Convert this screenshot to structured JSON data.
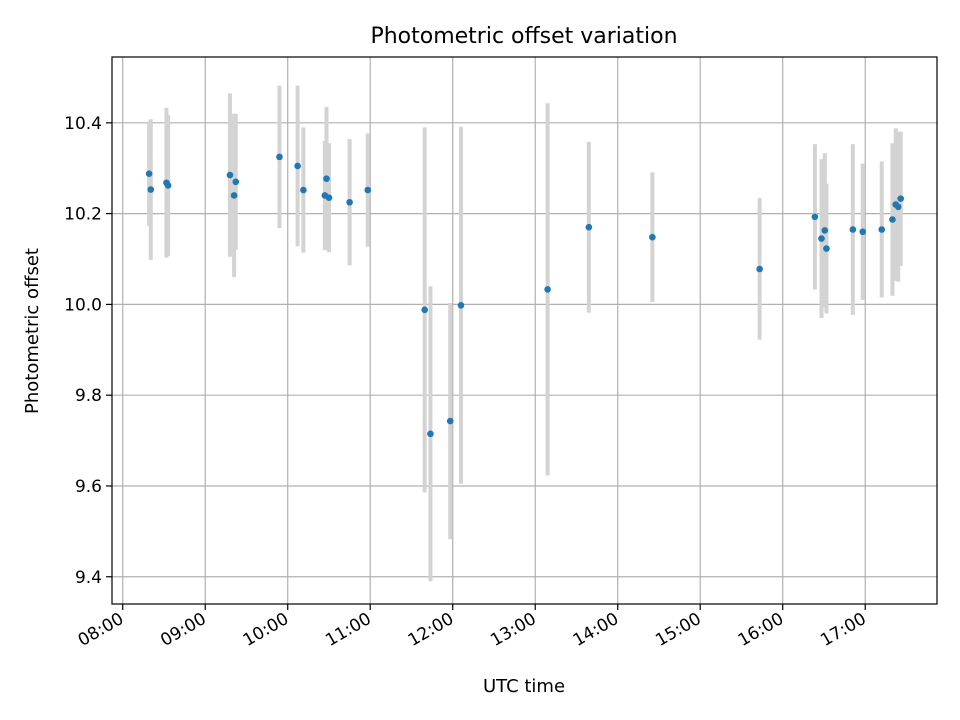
{
  "colors": {
    "point": "#1f77b4",
    "errorbar": "#d3d3d3",
    "grid": "#b0b0b0",
    "axis": "#000000"
  },
  "chart_data": {
    "type": "scatter",
    "title": "Photometric offset variation",
    "xlabel": "UTC time",
    "ylabel": "Photometric offset",
    "x_unit": "hours UTC",
    "xlim": [
      7.87,
      17.87
    ],
    "ylim": [
      9.34,
      10.545
    ],
    "grid": true,
    "xticks": [
      {
        "value": 8,
        "label": "08:00"
      },
      {
        "value": 9,
        "label": "09:00"
      },
      {
        "value": 10,
        "label": "10:00"
      },
      {
        "value": 11,
        "label": "11:00"
      },
      {
        "value": 12,
        "label": "12:00"
      },
      {
        "value": 13,
        "label": "13:00"
      },
      {
        "value": 14,
        "label": "14:00"
      },
      {
        "value": 15,
        "label": "15:00"
      },
      {
        "value": 16,
        "label": "16:00"
      },
      {
        "value": 17,
        "label": "17:00"
      }
    ],
    "yticks": [
      {
        "value": 9.4,
        "label": "9.4"
      },
      {
        "value": 9.6,
        "label": "9.6"
      },
      {
        "value": 9.8,
        "label": "9.8"
      },
      {
        "value": 10.0,
        "label": "10.0"
      },
      {
        "value": 10.2,
        "label": "10.2"
      },
      {
        "value": 10.4,
        "label": "10.4"
      }
    ],
    "points": [
      {
        "x": 8.32,
        "y": 10.288,
        "err": 0.115
      },
      {
        "x": 8.34,
        "y": 10.253,
        "err": 0.155
      },
      {
        "x": 8.53,
        "y": 10.268,
        "err": 0.165
      },
      {
        "x": 8.55,
        "y": 10.262,
        "err": 0.155
      },
      {
        "x": 9.3,
        "y": 10.285,
        "err": 0.18
      },
      {
        "x": 9.35,
        "y": 10.24,
        "err": 0.18
      },
      {
        "x": 9.37,
        "y": 10.27,
        "err": 0.15
      },
      {
        "x": 9.9,
        "y": 10.325,
        "err": 0.157
      },
      {
        "x": 10.12,
        "y": 10.305,
        "err": 0.177
      },
      {
        "x": 10.19,
        "y": 10.252,
        "err": 0.138
      },
      {
        "x": 10.45,
        "y": 10.24,
        "err": 0.12
      },
      {
        "x": 10.47,
        "y": 10.277,
        "err": 0.158
      },
      {
        "x": 10.5,
        "y": 10.235,
        "err": 0.12
      },
      {
        "x": 10.75,
        "y": 10.225,
        "err": 0.139
      },
      {
        "x": 10.97,
        "y": 10.252,
        "err": 0.125
      },
      {
        "x": 11.66,
        "y": 9.988,
        "err": 0.402
      },
      {
        "x": 11.73,
        "y": 9.715,
        "err": 0.325
      },
      {
        "x": 11.97,
        "y": 9.743,
        "err": 0.26
      },
      {
        "x": 12.1,
        "y": 9.998,
        "err": 0.393
      },
      {
        "x": 13.15,
        "y": 10.033,
        "err": 0.41
      },
      {
        "x": 13.65,
        "y": 10.17,
        "err": 0.188
      },
      {
        "x": 14.42,
        "y": 10.148,
        "err": 0.143
      },
      {
        "x": 15.72,
        "y": 10.078,
        "err": 0.156
      },
      {
        "x": 16.39,
        "y": 10.193,
        "err": 0.16
      },
      {
        "x": 16.47,
        "y": 10.145,
        "err": 0.175
      },
      {
        "x": 16.51,
        "y": 10.163,
        "err": 0.17
      },
      {
        "x": 16.53,
        "y": 10.123,
        "err": 0.143
      },
      {
        "x": 16.85,
        "y": 10.165,
        "err": 0.188
      },
      {
        "x": 16.97,
        "y": 10.16,
        "err": 0.15
      },
      {
        "x": 17.2,
        "y": 10.165,
        "err": 0.15
      },
      {
        "x": 17.33,
        "y": 10.187,
        "err": 0.168
      },
      {
        "x": 17.37,
        "y": 10.22,
        "err": 0.168
      },
      {
        "x": 17.4,
        "y": 10.215,
        "err": 0.165
      },
      {
        "x": 17.43,
        "y": 10.233,
        "err": 0.148
      }
    ]
  }
}
